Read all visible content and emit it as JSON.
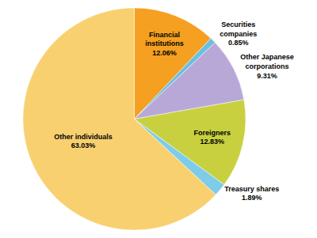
{
  "chart_data": {
    "type": "pie",
    "categories": [
      "Financial\ninstitutions",
      "Securities\ncompanies",
      "Other Japanese\ncorporations",
      "Foreigners",
      "Treasury shares",
      "Other individuals"
    ],
    "values": [
      12.06,
      0.85,
      9.31,
      12.83,
      1.89,
      63.03
    ],
    "value_labels": [
      "12.06%",
      "0.85%",
      "9.31%",
      "12.83%",
      "1.89%",
      "63.03%"
    ],
    "colors": [
      "#F5A020",
      "#6BBFE0",
      "#B8A8D8",
      "#C8D040",
      "#7ECDE8",
      "#F8D070"
    ],
    "data_labels": true
  }
}
